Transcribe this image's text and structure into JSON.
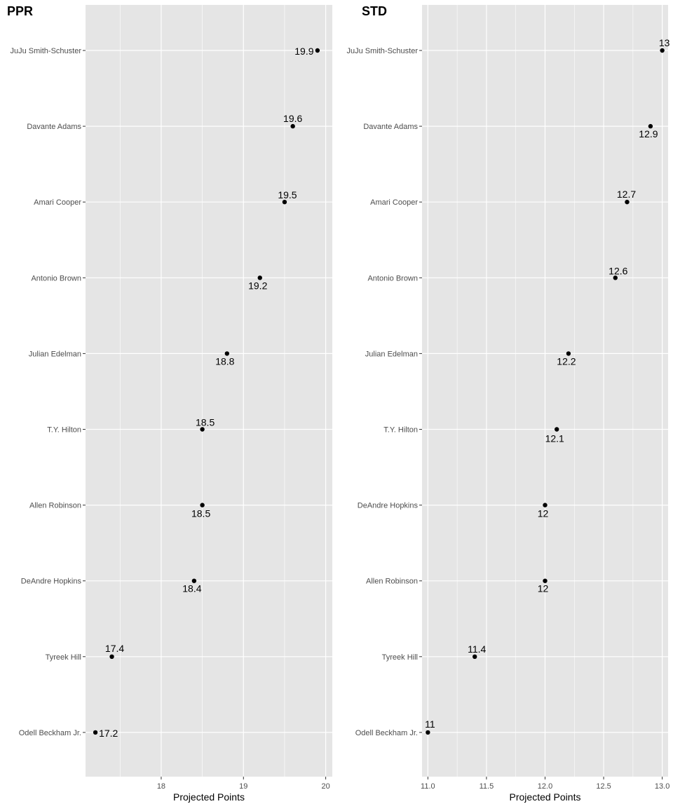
{
  "chart_data": [
    {
      "type": "scatter",
      "title": "PPR",
      "xlabel": "Projected Points",
      "ylabel": "",
      "xlim": [
        17.08,
        20.08
      ],
      "xticks": [
        "18",
        "19",
        "20"
      ],
      "grid": true,
      "points": [
        {
          "label": "JuJu Smith-Schuster",
          "value": 19.9,
          "value_label": "19.9"
        },
        {
          "label": "Davante Adams",
          "value": 19.6,
          "value_label": "19.6"
        },
        {
          "label": "Amari Cooper",
          "value": 19.5,
          "value_label": "19.5"
        },
        {
          "label": "Antonio Brown",
          "value": 19.2,
          "value_label": "19.2"
        },
        {
          "label": "Julian Edelman",
          "value": 18.8,
          "value_label": "18.8"
        },
        {
          "label": "T.Y. Hilton",
          "value": 18.5,
          "value_label": "18.5"
        },
        {
          "label": "Allen Robinson",
          "value": 18.5,
          "value_label": "18.5"
        },
        {
          "label": "DeAndre Hopkins",
          "value": 18.4,
          "value_label": "18.4"
        },
        {
          "label": "Tyreek Hill",
          "value": 17.4,
          "value_label": "17.4"
        },
        {
          "label": "Odell Beckham Jr.",
          "value": 17.2,
          "value_label": "17.2"
        }
      ]
    },
    {
      "type": "scatter",
      "title": "STD",
      "xlabel": "Projected Points",
      "ylabel": "",
      "xlim": [
        10.95,
        13.05
      ],
      "xticks": [
        "11.0",
        "11.5",
        "12.0",
        "12.5",
        "13.0"
      ],
      "grid": true,
      "points": [
        {
          "label": "JuJu Smith-Schuster",
          "value": 13.0,
          "value_label": "13"
        },
        {
          "label": "Davante Adams",
          "value": 12.9,
          "value_label": "12.9"
        },
        {
          "label": "Amari Cooper",
          "value": 12.7,
          "value_label": "12.7"
        },
        {
          "label": "Antonio Brown",
          "value": 12.6,
          "value_label": "12.6"
        },
        {
          "label": "Julian Edelman",
          "value": 12.2,
          "value_label": "12.2"
        },
        {
          "label": "T.Y. Hilton",
          "value": 12.1,
          "value_label": "12.1"
        },
        {
          "label": "DeAndre Hopkins",
          "value": 12.0,
          "value_label": "12"
        },
        {
          "label": "Allen Robinson",
          "value": 12.0,
          "value_label": "12"
        },
        {
          "label": "Tyreek Hill",
          "value": 11.4,
          "value_label": "11.4"
        },
        {
          "label": "Odell Beckham Jr.",
          "value": 11.0,
          "value_label": "11"
        }
      ]
    }
  ],
  "colors": {
    "panel_background": "#e5e5e5",
    "gridline": "#ffffff",
    "point": "#000000",
    "tick_label": "#4d4d4d"
  }
}
